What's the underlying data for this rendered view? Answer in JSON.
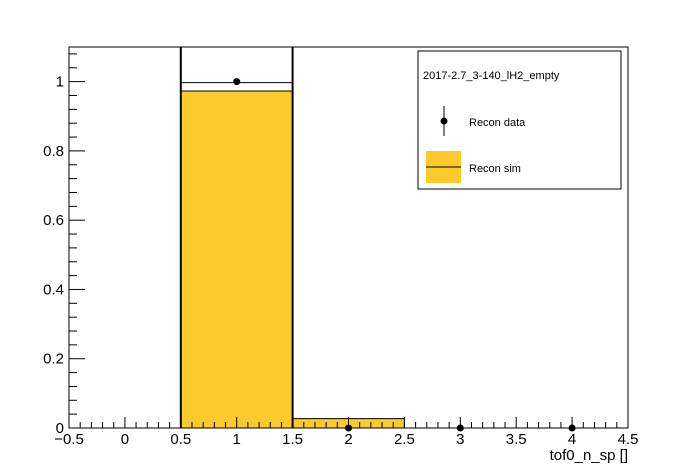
{
  "chart_data": {
    "type": "bar",
    "title": "",
    "xlabel": "tof0_n_sp []",
    "ylabel": "",
    "xlim": [
      -0.5,
      4.5
    ],
    "ylim": [
      0,
      1.1
    ],
    "grid": false,
    "x_ticks": [
      -0.5,
      0,
      0.5,
      1,
      1.5,
      2,
      2.5,
      3,
      3.5,
      4,
      4.5
    ],
    "x_tick_labels": [
      "−0.5",
      "0",
      "0.5",
      "1",
      "1.5",
      "2",
      "2.5",
      "3",
      "3.5",
      "4",
      "4.5"
    ],
    "y_ticks": [
      0,
      0.2,
      0.4,
      0.6,
      0.8,
      1
    ],
    "y_tick_labels": [
      "0",
      "0.2",
      "0.4",
      "0.6",
      "0.8",
      "1"
    ],
    "bin_edges": [
      0.5,
      1.5,
      2.5
    ],
    "series": [
      {
        "name": "Recon sim",
        "kind": "histogram",
        "fill_color": "#fdca2e",
        "bins": [
          {
            "low": 0.5,
            "high": 1.5,
            "value": 0.973
          },
          {
            "low": 1.5,
            "high": 2.5,
            "value": 0.027
          }
        ]
      },
      {
        "name": "Recon data",
        "kind": "points",
        "color": "#000000",
        "points": [
          {
            "x": 1,
            "y": 1.0
          },
          {
            "x": 2,
            "y": 0.0
          },
          {
            "x": 3,
            "y": 0.0
          },
          {
            "x": 4,
            "y": 0.0
          }
        ]
      }
    ],
    "outline_histogram": {
      "bins": [
        {
          "low": 0.5,
          "high": 1.5,
          "value": 0.997
        }
      ],
      "vertical_lines_x": [
        0.5,
        1.5
      ]
    },
    "legend": {
      "placement": "top-right",
      "header": "2017-2.7_3-140_lH2_empty",
      "entries": [
        {
          "label": "Recon data",
          "marker": "point"
        },
        {
          "label": "Recon sim",
          "marker": "fill"
        }
      ]
    }
  }
}
